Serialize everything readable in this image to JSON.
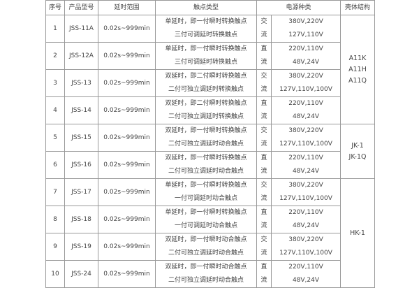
{
  "headers": {
    "no": "序号",
    "model": "产品型号",
    "delay": "延时范围",
    "contact": "触点类型",
    "power": "电源种类",
    "shell": "壳体结构"
  },
  "rows": [
    {
      "no": "1",
      "model": "JSS-11A",
      "delay": "0.02s~999min",
      "contact1": "单延时，即一付瞬时转换触点",
      "contact2": "三付可调延时转换触点",
      "pt1": "交",
      "pt2": "流",
      "v1": "380V,220V",
      "v2": "127V,110V"
    },
    {
      "no": "2",
      "model": "JSS-12A",
      "delay": "0.02s~999min",
      "contact1": "单延时，即一付瞬时转换触点",
      "contact2": "三付可调延时转换触点",
      "pt1": "直",
      "pt2": "流",
      "v1": "220V,110V",
      "v2": "48V,24V"
    },
    {
      "no": "3",
      "model": "JSS-13",
      "delay": "0.02s~999min",
      "contact1": "双延时，即二付瞬时转换触点",
      "contact2": "二付可独立调延时转换触点",
      "pt1": "交",
      "pt2": "流",
      "v1": "380V,220V",
      "v2": "127V,110V,100V"
    },
    {
      "no": "4",
      "model": "JSS-14",
      "delay": "0.02s~999min",
      "contact1": "双延时，即二付瞬时转换触点",
      "contact2": "二付可独立调延时转换触点",
      "pt1": "直",
      "pt2": "流",
      "v1": "220V,110V",
      "v2": "48V,24V"
    },
    {
      "no": "5",
      "model": "JSS-15",
      "delay": "0.02s~999min",
      "contact1": "双延时，即一付瞬时转换触点",
      "contact2": "二付可独立调延时动合触点",
      "pt1": "交",
      "pt2": "流",
      "v1": "380V,220V",
      "v2": "127V,110V,100V"
    },
    {
      "no": "6",
      "model": "JSS-16",
      "delay": "0.02s~999min",
      "contact1": "双延时，即一付瞬时转换触点",
      "contact2": "二付可独立调延时动合触点",
      "pt1": "直",
      "pt2": "流",
      "v1": "220V,110V",
      "v2": "48V,24V"
    },
    {
      "no": "7",
      "model": "JSS-17",
      "delay": "0.02s~999min",
      "contact1": "单延时，即一付瞬时转换触点",
      "contact2": "一付可调延时动合触点",
      "pt1": "交",
      "pt2": "流",
      "v1": "380V,220V",
      "v2": "127V,110V,100V"
    },
    {
      "no": "8",
      "model": "JSS-18",
      "delay": "0.02s~999min",
      "contact1": "单延时，即一付瞬时转换触点",
      "contact2": "一付可调延时动合触点",
      "pt1": "直",
      "pt2": "流",
      "v1": "220V,110V",
      "v2": "48V,24V"
    },
    {
      "no": "9",
      "model": "JSS-19",
      "delay": "0.02s~999min",
      "contact1": "双延时，即一付瞬时动合触点",
      "contact2": "二付可独立调延时动合触点",
      "pt1": "交",
      "pt2": "流",
      "v1": "380V,220V",
      "v2": "127V,110V,100V"
    },
    {
      "no": "10",
      "model": "JSS-24",
      "delay": "0.02s~999min",
      "contact1": "双延时，即一付瞬时动合触点",
      "contact2": "二付可独立调延时动合触点",
      "pt1": "直",
      "pt2": "流",
      "v1": "220V,110V",
      "v2": "48V,24V"
    }
  ],
  "shells": [
    {
      "lines": [
        "A11K",
        "A11H",
        "A11Q"
      ]
    },
    {
      "lines": [
        "JK-1",
        "JK-1Q"
      ]
    },
    {
      "lines": [
        "HK-1"
      ]
    }
  ]
}
